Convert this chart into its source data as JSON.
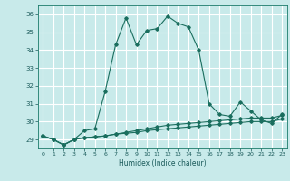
{
  "title": "",
  "xlabel": "Humidex (Indice chaleur)",
  "bg_color": "#c8eaea",
  "grid_color": "#ffffff",
  "line_color": "#1a6e5e",
  "xlim": [
    -0.5,
    23.5
  ],
  "ylim": [
    28.5,
    36.5
  ],
  "yticks": [
    29,
    30,
    31,
    32,
    33,
    34,
    35,
    36
  ],
  "xticks": [
    0,
    1,
    2,
    3,
    4,
    5,
    6,
    7,
    8,
    9,
    10,
    11,
    12,
    13,
    14,
    15,
    16,
    17,
    18,
    19,
    20,
    21,
    22,
    23
  ],
  "series1_x": [
    0,
    1,
    2,
    3,
    4,
    5,
    6,
    7,
    8,
    9,
    10,
    11,
    12,
    13,
    14,
    15,
    16,
    17,
    18,
    19,
    20,
    21,
    22,
    23
  ],
  "series1_y": [
    29.2,
    29.0,
    28.7,
    29.0,
    29.5,
    29.6,
    31.7,
    34.3,
    35.8,
    34.3,
    35.1,
    35.2,
    35.9,
    35.5,
    35.3,
    34.0,
    31.0,
    30.4,
    30.3,
    31.1,
    30.6,
    30.1,
    29.9,
    30.4
  ],
  "series2_x": [
    0,
    1,
    2,
    3,
    4,
    5,
    6,
    7,
    8,
    9,
    10,
    11,
    12,
    13,
    14,
    15,
    16,
    17,
    18,
    19,
    20,
    21,
    22,
    23
  ],
  "series2_y": [
    29.2,
    29.0,
    28.7,
    29.0,
    29.1,
    29.15,
    29.2,
    29.3,
    29.4,
    29.5,
    29.6,
    29.7,
    29.8,
    29.85,
    29.9,
    29.95,
    30.0,
    30.05,
    30.1,
    30.15,
    30.2,
    30.2,
    30.2,
    30.35
  ],
  "series3_x": [
    0,
    1,
    2,
    3,
    4,
    5,
    6,
    7,
    8,
    9,
    10,
    11,
    12,
    13,
    14,
    15,
    16,
    17,
    18,
    19,
    20,
    21,
    22,
    23
  ],
  "series3_y": [
    29.2,
    29.0,
    28.7,
    29.0,
    29.1,
    29.15,
    29.2,
    29.3,
    29.35,
    29.4,
    29.5,
    29.55,
    29.6,
    29.65,
    29.7,
    29.75,
    29.8,
    29.85,
    29.9,
    29.95,
    30.0,
    30.0,
    30.0,
    30.15
  ]
}
